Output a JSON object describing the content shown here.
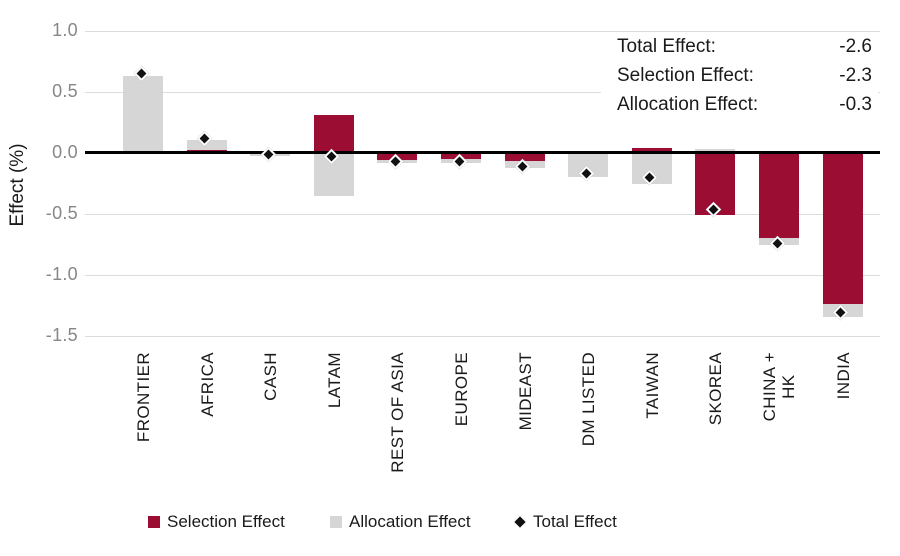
{
  "chart_data": {
    "type": "bar",
    "subtype": "stacked-bars-with-diamond-markers",
    "ylabel": "Effect (%)",
    "ylim": [
      -1.5,
      1.0
    ],
    "yticks": [
      1.0,
      0.5,
      0.0,
      -0.5,
      -1.0,
      -1.5
    ],
    "grid": true,
    "legend_position": "bottom",
    "categories": [
      "FRONTIER",
      "AFRICA",
      "CASH",
      "LATAM",
      "REST OF ASIA",
      "EUROPE",
      "MIDEAST",
      "DM LISTED",
      "TAIWAN",
      "SKOREA",
      "CHINA +\nHK",
      "INDIA"
    ],
    "series": [
      {
        "name": "Selection Effect",
        "type": "bar",
        "color": "#9B0D33",
        "values": [
          0.0,
          0.02,
          0.0,
          0.31,
          -0.06,
          -0.05,
          -0.07,
          0.0,
          0.04,
          -0.51,
          -0.7,
          -1.24
        ]
      },
      {
        "name": "Allocation Effect",
        "type": "bar",
        "color": "#D6D6D6",
        "values": [
          0.63,
          0.08,
          -0.03,
          -0.36,
          -0.03,
          -0.04,
          -0.06,
          -0.2,
          -0.26,
          0.03,
          -0.06,
          -0.11
        ]
      },
      {
        "name": "Total Effect",
        "type": "scatter-diamond",
        "color": "#111111",
        "values": [
          0.63,
          0.1,
          -0.03,
          -0.05,
          -0.09,
          -0.09,
          -0.13,
          -0.19,
          -0.22,
          -0.48,
          -0.76,
          -1.33
        ]
      }
    ]
  },
  "annotation": {
    "rows": [
      {
        "label": "Total Effect:",
        "value": "-2.6"
      },
      {
        "label": "Selection Effect:",
        "value": "-2.3"
      },
      {
        "label": "Allocation Effect:",
        "value": "-0.3"
      }
    ]
  },
  "colors": {
    "selection": "#9B0D33",
    "allocation": "#D6D6D6",
    "total_marker": "#111111",
    "gridline": "#DCDCDC",
    "zero_line": "#000000",
    "tick_text": "#878787",
    "text": "#1A1A1A"
  }
}
